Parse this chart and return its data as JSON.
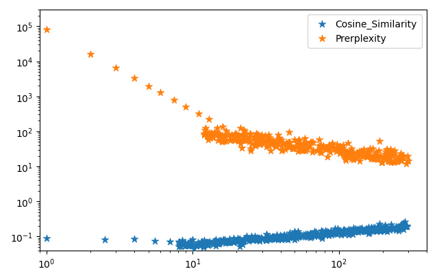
{
  "title": "",
  "cosine_color": "#1f77b4",
  "perplexity_color": "#ff7f0e",
  "marker": "*",
  "marker_size": 8,
  "xlim": [
    0.9,
    400
  ],
  "ylim": [
    0.04,
    300000
  ],
  "legend_loc": "upper right",
  "cosine_label": "Cosine_Similarity",
  "perplexity_label": "Prerplexity"
}
